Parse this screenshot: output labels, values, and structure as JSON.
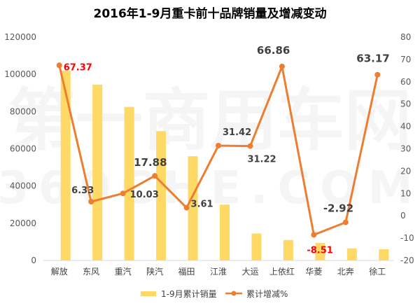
{
  "chart_data": {
    "type": "bar+line",
    "title": "2016年1-9月重卡前十品牌销量及增减变动",
    "categories": [
      "解放",
      "东风",
      "重汽",
      "陕汽",
      "福田",
      "江淮",
      "大运",
      "上依红",
      "华菱",
      "北奔",
      "徐工"
    ],
    "series": [
      {
        "name": "1-9月累计销量",
        "type": "bar",
        "axis": "left",
        "color": "#FFD966",
        "values": [
          102000,
          94500,
          82500,
          69500,
          56000,
          30000,
          14500,
          11000,
          9500,
          6500,
          6000
        ]
      },
      {
        "name": "累计增减%",
        "type": "line",
        "axis": "right",
        "color": "#ED7D31",
        "values": [
          67.37,
          6.33,
          10.03,
          17.88,
          3.61,
          31.42,
          31.22,
          66.86,
          -8.51,
          -2.92,
          63.17
        ]
      }
    ],
    "data_labels": [
      "67.37",
      "6.33",
      "10.03",
      "17.88",
      "3.61",
      "31.42",
      "31.22",
      "66.86",
      "-8.51",
      "-2.92",
      "63.17"
    ],
    "data_label_colors": [
      "#FF0000",
      "#404040",
      "#404040",
      "#404040",
      "#404040",
      "#404040",
      "#404040",
      "#404040",
      "#FF0000",
      "#404040",
      "#404040"
    ],
    "y_left": {
      "min": 0,
      "max": 120000,
      "step": 20000,
      "ticks": [
        "0",
        "20000",
        "40000",
        "60000",
        "80000",
        "100000",
        "120000"
      ]
    },
    "y_right": {
      "min": -20,
      "max": 80,
      "step": 10,
      "ticks": [
        "-20",
        "-10",
        "0",
        "10",
        "20",
        "30",
        "40",
        "50",
        "60",
        "70",
        "80"
      ]
    },
    "legend": {
      "position": "bottom",
      "items": [
        "1-9月累计销量",
        "累计增减%"
      ]
    }
  },
  "watermark": {
    "line1": "第一商用车网",
    "line2": "360CHE.COM"
  }
}
